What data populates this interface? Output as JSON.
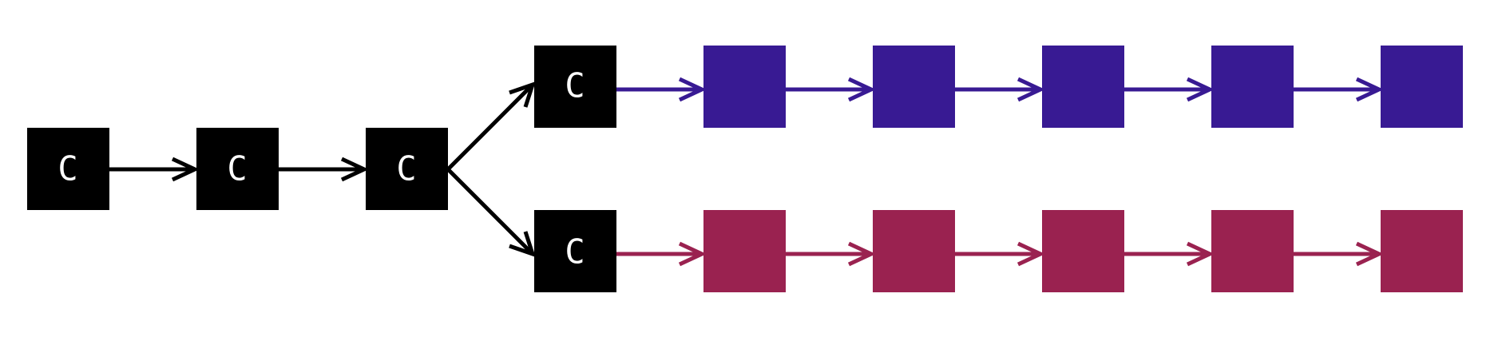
{
  "colors": {
    "common": "#000000",
    "branch_top": "#381a93",
    "branch_bottom": "#9a2250",
    "label": "#ffffff",
    "background": "#ffffff"
  },
  "nodes": {
    "trunk_1": {
      "label": "C"
    },
    "trunk_2": {
      "label": "C"
    },
    "trunk_3": {
      "label": "C"
    },
    "top_head": {
      "label": "C"
    },
    "bottom_head": {
      "label": "C"
    }
  },
  "top_branch_block_count": 5,
  "bottom_branch_block_count": 5
}
